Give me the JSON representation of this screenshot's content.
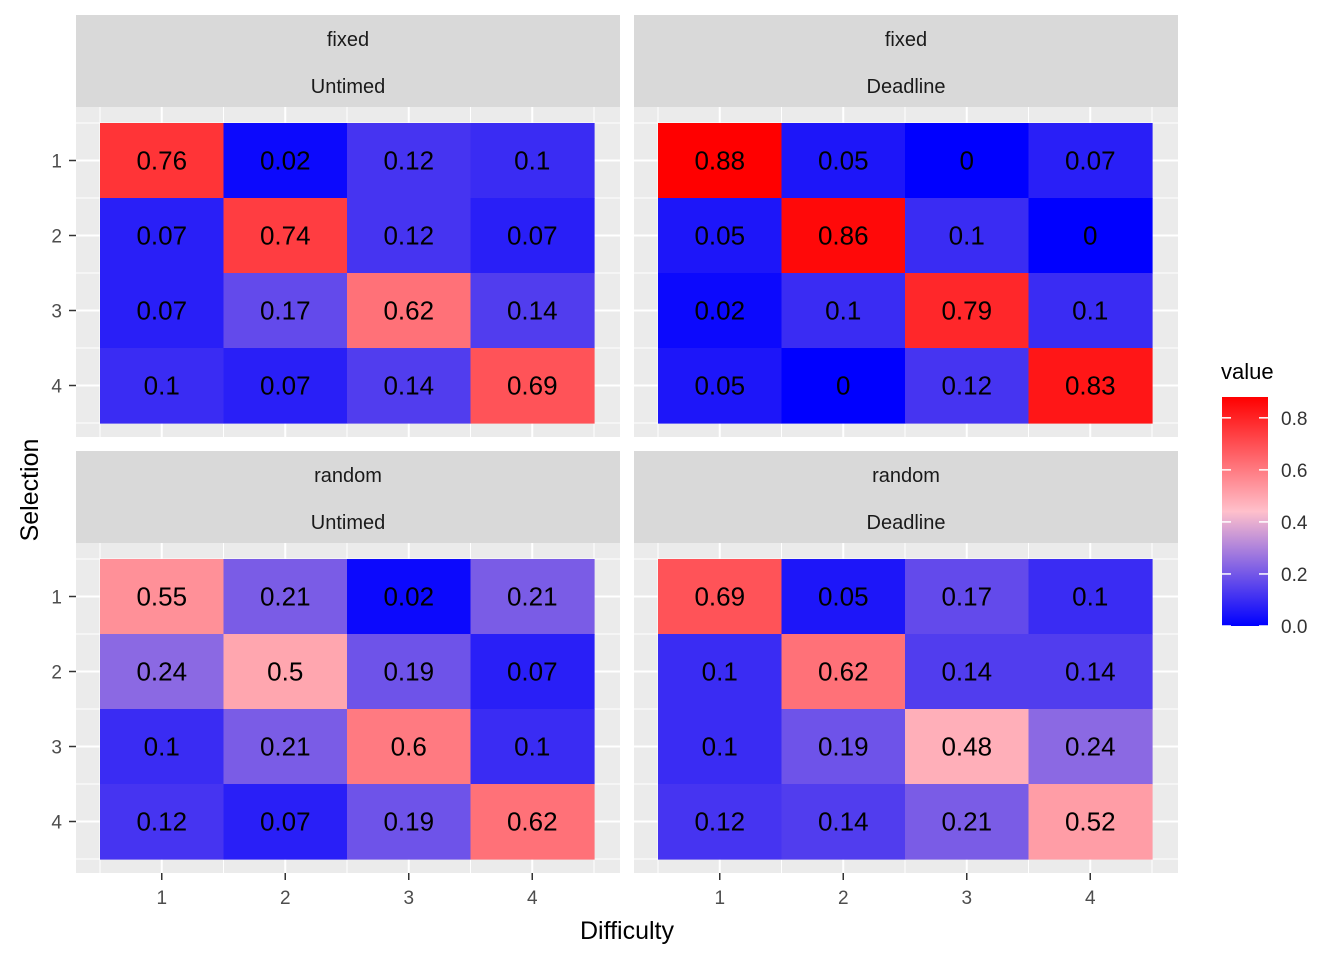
{
  "chart_data": {
    "type": "heatmap",
    "xlabel": "Difficulty",
    "ylabel": "Selection",
    "x_categories": [
      "1",
      "2",
      "3",
      "4"
    ],
    "y_categories": [
      "1",
      "2",
      "3",
      "4"
    ],
    "legend": {
      "title": "value",
      "position": "right",
      "ticks": [
        "0.0",
        "0.2",
        "0.4",
        "0.6",
        "0.8"
      ],
      "range": [
        0,
        0.88
      ],
      "colors": {
        "low": "#0000FF",
        "mid": "#FFC0CB",
        "high": "#FF0000",
        "midpoint": 0.44
      }
    },
    "grid": true,
    "panels": [
      {
        "row_label": "fixed",
        "col_label": "Untimed",
        "values": [
          [
            "0.76",
            "0.02",
            "0.12",
            "0.1"
          ],
          [
            "0.07",
            "0.74",
            "0.12",
            "0.07"
          ],
          [
            "0.07",
            "0.17",
            "0.62",
            "0.14"
          ],
          [
            "0.1",
            "0.07",
            "0.14",
            "0.69"
          ]
        ]
      },
      {
        "row_label": "fixed",
        "col_label": "Deadline",
        "values": [
          [
            "0.88",
            "0.05",
            "0",
            "0.07"
          ],
          [
            "0.05",
            "0.86",
            "0.1",
            "0"
          ],
          [
            "0.02",
            "0.1",
            "0.79",
            "0.1"
          ],
          [
            "0.05",
            "0",
            "0.12",
            "0.83"
          ]
        ]
      },
      {
        "row_label": "random",
        "col_label": "Untimed",
        "values": [
          [
            "0.55",
            "0.21",
            "0.02",
            "0.21"
          ],
          [
            "0.24",
            "0.5",
            "0.19",
            "0.07"
          ],
          [
            "0.1",
            "0.21",
            "0.6",
            "0.1"
          ],
          [
            "0.12",
            "0.07",
            "0.19",
            "0.62"
          ]
        ]
      },
      {
        "row_label": "random",
        "col_label": "Deadline",
        "values": [
          [
            "0.69",
            "0.05",
            "0.17",
            "0.1"
          ],
          [
            "0.1",
            "0.62",
            "0.14",
            "0.14"
          ],
          [
            "0.1",
            "0.19",
            "0.48",
            "0.24"
          ],
          [
            "0.12",
            "0.14",
            "0.21",
            "0.52"
          ]
        ]
      }
    ]
  }
}
